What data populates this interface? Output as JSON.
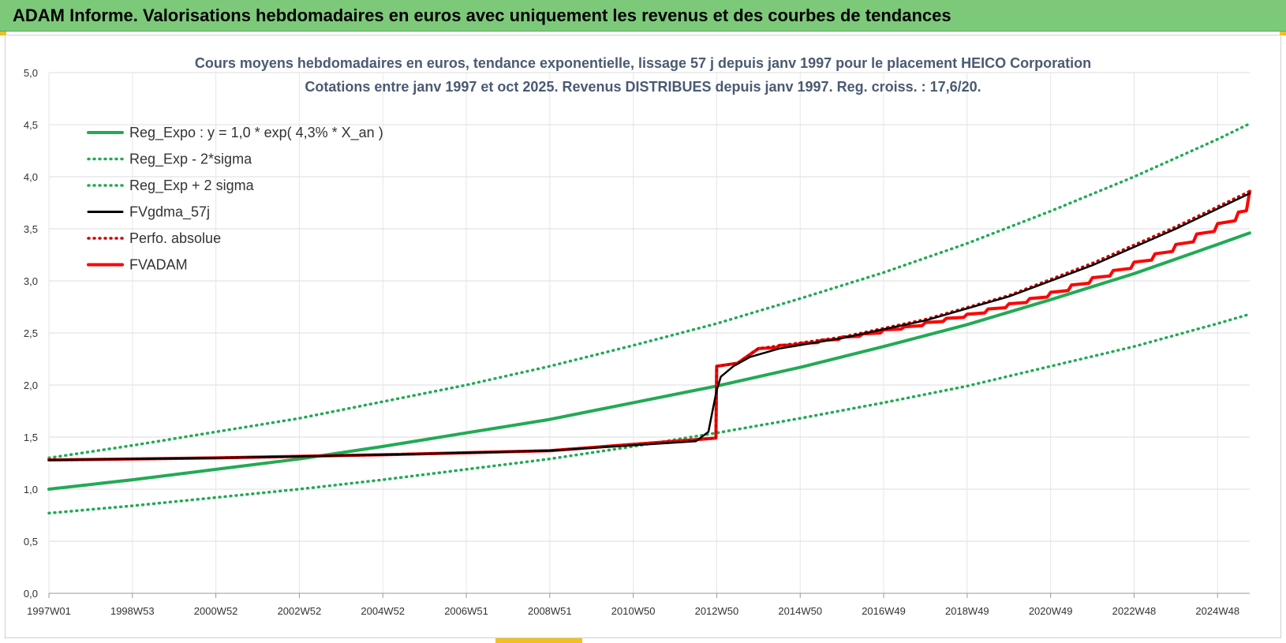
{
  "header": {
    "title": "ADAM Informe. Valorisations hebdomadaires en euros avec uniquement les revenus et des courbes de tendances"
  },
  "chart_data": {
    "type": "line",
    "title": "Cours moyens hebdomadaires en euros, tendance exponentielle, lissage 57 j depuis janv 1997 pour le placement HEICO Corporation",
    "subtitle": "Cotations entre janv 1997 et oct 2025. Revenus DISTRIBUES depuis janv 1997. Reg. croiss. : 17,6/20.",
    "xlabel": "",
    "ylabel": "",
    "xlim": [
      1997.0,
      2025.77
    ],
    "ylim": [
      0,
      5
    ],
    "x_ticks": [
      {
        "x": 1997.0,
        "label": "1997W01"
      },
      {
        "x": 1999.0,
        "label": "1998W53"
      },
      {
        "x": 2001.0,
        "label": "2000W52"
      },
      {
        "x": 2003.0,
        "label": "2002W52"
      },
      {
        "x": 2005.0,
        "label": "2004W52"
      },
      {
        "x": 2007.0,
        "label": "2006W51"
      },
      {
        "x": 2009.0,
        "label": "2008W51"
      },
      {
        "x": 2011.0,
        "label": "2010W50"
      },
      {
        "x": 2013.0,
        "label": "2012W50"
      },
      {
        "x": 2015.0,
        "label": "2014W50"
      },
      {
        "x": 2017.0,
        "label": "2016W49"
      },
      {
        "x": 2019.0,
        "label": "2018W49"
      },
      {
        "x": 2021.0,
        "label": "2020W49"
      },
      {
        "x": 2023.0,
        "label": "2022W48"
      },
      {
        "x": 2025.0,
        "label": "2024W48"
      }
    ],
    "y_ticks": [
      {
        "y": 0,
        "label": "0,0"
      },
      {
        "y": 0.5,
        "label": "0,5"
      },
      {
        "y": 1.0,
        "label": "1,0"
      },
      {
        "y": 1.5,
        "label": "1,5"
      },
      {
        "y": 2.0,
        "label": "2,0"
      },
      {
        "y": 2.5,
        "label": "2,5"
      },
      {
        "y": 3.0,
        "label": "3,0"
      },
      {
        "y": 3.5,
        "label": "3,5"
      },
      {
        "y": 4.0,
        "label": "4,0"
      },
      {
        "y": 4.5,
        "label": "4,5"
      },
      {
        "y": 5.0,
        "label": "5,0"
      }
    ],
    "grid": true,
    "legend_position": "top-left",
    "series": [
      {
        "name": "Reg_Expo : y = 1,0 * exp( 4,3% *  X_an )",
        "color": "#22aa55",
        "style": "solid",
        "x": [
          1997,
          1999,
          2001,
          2003,
          2005,
          2007,
          2009,
          2011,
          2013,
          2015,
          2017,
          2019,
          2021,
          2023,
          2025,
          2025.77
        ],
        "y": [
          1.0,
          1.09,
          1.19,
          1.29,
          1.41,
          1.54,
          1.67,
          1.83,
          1.99,
          2.17,
          2.37,
          2.58,
          2.82,
          3.07,
          3.35,
          3.46
        ]
      },
      {
        "name": "Reg_Exp - 2*sigma",
        "color": "#22aa55",
        "style": "dotted",
        "x": [
          1997,
          1999,
          2001,
          2003,
          2005,
          2007,
          2009,
          2011,
          2013,
          2015,
          2017,
          2019,
          2021,
          2023,
          2025,
          2025.77
        ],
        "y": [
          0.77,
          0.84,
          0.92,
          1.0,
          1.09,
          1.19,
          1.29,
          1.41,
          1.54,
          1.68,
          1.83,
          1.99,
          2.18,
          2.37,
          2.59,
          2.68
        ]
      },
      {
        "name": "Reg_Exp + 2 sigma",
        "color": "#22aa55",
        "style": "dotted",
        "x": [
          1997,
          1999,
          2001,
          2003,
          2005,
          2007,
          2009,
          2011,
          2013,
          2015,
          2017,
          2019,
          2021,
          2023,
          2025,
          2025.77
        ],
        "y": [
          1.3,
          1.42,
          1.55,
          1.68,
          1.84,
          2.0,
          2.18,
          2.38,
          2.59,
          2.83,
          3.08,
          3.36,
          3.67,
          4.0,
          4.36,
          4.51
        ]
      },
      {
        "name": "FVgdma_57j",
        "color": "#000000",
        "style": "solid",
        "x": [
          1997,
          2001,
          2005,
          2009,
          2012.5,
          2012.8,
          2012.9,
          2013.0,
          2013.1,
          2013.4,
          2013.8,
          2014.5,
          2016,
          2018,
          2020,
          2022,
          2024,
          2025.77
        ],
        "y": [
          1.28,
          1.3,
          1.33,
          1.37,
          1.46,
          1.55,
          1.75,
          1.95,
          2.08,
          2.18,
          2.27,
          2.35,
          2.45,
          2.62,
          2.85,
          3.15,
          3.5,
          3.84
        ]
      },
      {
        "name": "Perfo. absolue",
        "color": "#cc0000",
        "style": "dotted",
        "x": [
          1997,
          2001,
          2005,
          2009,
          2012.98,
          2013.0,
          2013.5,
          2014.0,
          2016,
          2018,
          2020,
          2022,
          2024,
          2025.77
        ],
        "y": [
          1.28,
          1.3,
          1.33,
          1.37,
          1.49,
          2.18,
          2.21,
          2.35,
          2.46,
          2.63,
          2.86,
          3.17,
          3.52,
          3.86
        ]
      },
      {
        "name": "FVADAM",
        "color": "#ff0000",
        "style": "solid",
        "steps": [
          [
            2014.0,
            2.35
          ],
          [
            2014.5,
            2.38
          ],
          [
            2015.0,
            2.4
          ],
          [
            2015.5,
            2.43
          ],
          [
            2016.0,
            2.46
          ],
          [
            2016.5,
            2.49
          ],
          [
            2017.0,
            2.53
          ],
          [
            2017.5,
            2.56
          ],
          [
            2018.0,
            2.6
          ],
          [
            2018.5,
            2.64
          ],
          [
            2019.0,
            2.68
          ],
          [
            2019.5,
            2.73
          ],
          [
            2020.0,
            2.78
          ],
          [
            2020.5,
            2.83
          ],
          [
            2021.0,
            2.89
          ],
          [
            2021.5,
            2.96
          ],
          [
            2022.0,
            3.03
          ],
          [
            2022.5,
            3.1
          ],
          [
            2023.0,
            3.18
          ],
          [
            2023.5,
            3.26
          ],
          [
            2024.0,
            3.35
          ],
          [
            2024.5,
            3.45
          ],
          [
            2025.0,
            3.55
          ],
          [
            2025.5,
            3.66
          ]
        ],
        "x": [
          1997,
          2001,
          2005,
          2009,
          2012.98,
          2013.0,
          2013.5,
          2014.0,
          2016,
          2018,
          2020,
          2022,
          2024,
          2025.77
        ],
        "y": [
          1.28,
          1.3,
          1.33,
          1.37,
          1.49,
          2.18,
          2.21,
          2.35,
          2.46,
          2.63,
          2.86,
          3.17,
          3.52,
          3.86
        ]
      }
    ]
  }
}
